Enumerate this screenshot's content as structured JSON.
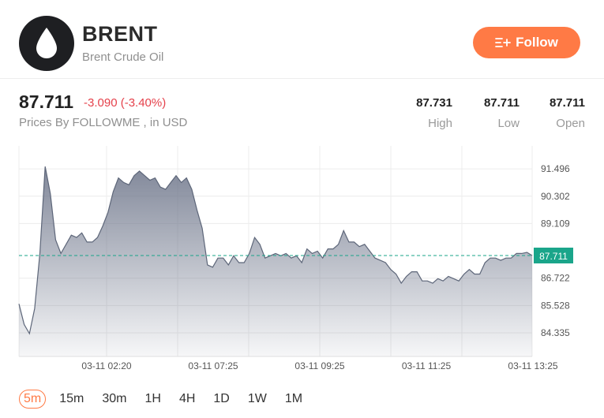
{
  "header": {
    "symbol": "BRENT",
    "name": "Brent Crude Oil",
    "follow_label": "Follow",
    "avatar_icon": "oil-drop-icon",
    "follow_icon": "add-list-icon"
  },
  "quote": {
    "price": "87.711",
    "change": "-3.090 (-3.40%)",
    "source": "Prices By FOLLOWME , in USD"
  },
  "stats": [
    {
      "value": "87.731",
      "label": "High"
    },
    {
      "value": "87.711",
      "label": "Low"
    },
    {
      "value": "87.711",
      "label": "Open"
    }
  ],
  "timeframes": [
    "5m",
    "15m",
    "30m",
    "1H",
    "4H",
    "1D",
    "1W",
    "1M"
  ],
  "active_timeframe": "5m",
  "colors": {
    "accent": "#ff7a45",
    "down": "#e5414b",
    "current_line": "#1aa58a",
    "series": "#5d6679"
  },
  "chart_data": {
    "type": "area",
    "y_ticks": [
      "91.496",
      "90.302",
      "89.109",
      "86.722",
      "85.528",
      "84.335"
    ],
    "x_ticks": [
      "03-11 02:20",
      "03-11 07:25",
      "03-11 09:25",
      "03-11 11:25",
      "03-11 13:25"
    ],
    "ylim": [
      83.3,
      92.5
    ],
    "current_price": "87.711",
    "current_value": 87.711,
    "grid": true,
    "values": [
      85.6,
      84.7,
      84.3,
      85.4,
      87.8,
      91.6,
      90.4,
      88.4,
      87.8,
      88.2,
      88.6,
      88.5,
      88.7,
      88.3,
      88.3,
      88.5,
      89.0,
      89.6,
      90.5,
      91.1,
      90.9,
      90.8,
      91.2,
      91.4,
      91.2,
      91.0,
      91.1,
      90.7,
      90.6,
      90.9,
      91.2,
      90.9,
      91.1,
      90.6,
      89.7,
      88.9,
      87.3,
      87.2,
      87.6,
      87.6,
      87.3,
      87.7,
      87.4,
      87.4,
      87.8,
      88.5,
      88.2,
      87.6,
      87.7,
      87.8,
      87.7,
      87.8,
      87.6,
      87.7,
      87.4,
      88.0,
      87.8,
      87.9,
      87.6,
      88.0,
      88.0,
      88.2,
      88.8,
      88.3,
      88.3,
      88.1,
      88.2,
      87.9,
      87.6,
      87.5,
      87.4,
      87.1,
      86.9,
      86.5,
      86.8,
      87.0,
      87.0,
      86.6,
      86.6,
      86.5,
      86.7,
      86.6,
      86.8,
      86.7,
      86.6,
      86.9,
      87.1,
      86.9,
      86.9,
      87.4,
      87.6,
      87.6,
      87.5,
      87.6,
      87.6,
      87.8,
      87.8,
      87.85,
      87.71
    ]
  }
}
